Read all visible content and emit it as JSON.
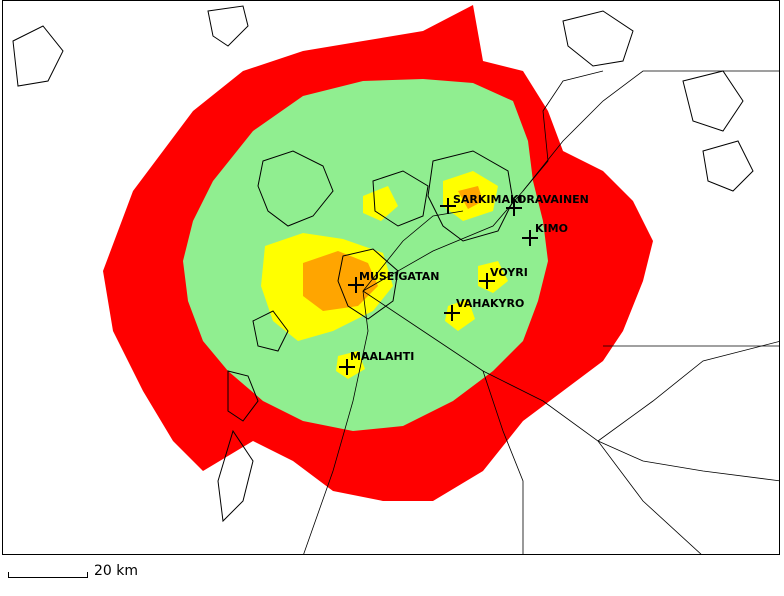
{
  "map": {
    "coverage_colors": {
      "outer": "#ff0000",
      "main": "#90ee90",
      "medium": "#ffff00",
      "high": "#ffa500"
    },
    "places": [
      {
        "name": "SARKIMAKI",
        "marker": "cross"
      },
      {
        "name": "ORAVAINEN",
        "marker": "cross"
      },
      {
        "name": "KIMO",
        "marker": "cross"
      },
      {
        "name": "MUSEIGATAN",
        "marker": "cross"
      },
      {
        "name": "VOYRI",
        "marker": "cross"
      },
      {
        "name": "VAHAKYRO",
        "marker": "cross"
      },
      {
        "name": "MAALAHTI",
        "marker": "cross"
      }
    ]
  },
  "scale": {
    "label": "20 km"
  }
}
